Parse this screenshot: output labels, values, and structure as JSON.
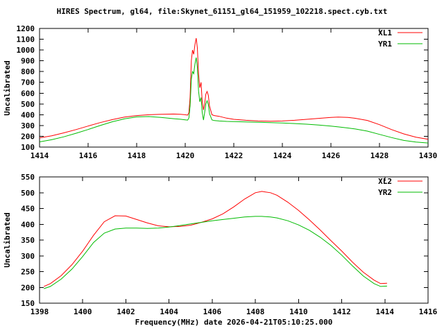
{
  "title": "HIRES Spectrum, gl64, file:Skynet_61151_gl64_151959_102218.spect.cyb.txt",
  "colors": {
    "background": "#ffffff",
    "axis": "#000000",
    "series_red": "#ff0000",
    "series_green": "#00bb00"
  },
  "chart_data": [
    {
      "type": "line",
      "ylabel": "Uncalibrated",
      "xlabel": "",
      "xlim": [
        1414,
        1430
      ],
      "ylim": [
        100,
        1200
      ],
      "xtick_step": 2,
      "ytick_step": 100,
      "grid": false,
      "legend_position": "top-right-inside",
      "series": [
        {
          "name": "XL1",
          "color": "#ff0000",
          "x": [
            1414,
            1414.5,
            1415,
            1415.5,
            1416,
            1416.5,
            1417,
            1417.5,
            1418,
            1418.5,
            1419,
            1419.5,
            1419.8,
            1420.0,
            1420.1,
            1420.15,
            1420.2,
            1420.25,
            1420.3,
            1420.35,
            1420.4,
            1420.45,
            1420.5,
            1420.55,
            1420.6,
            1420.65,
            1420.7,
            1420.75,
            1420.8,
            1420.85,
            1420.9,
            1420.95,
            1421.0,
            1421.1,
            1421.2,
            1421.4,
            1421.7,
            1422,
            1422.5,
            1423,
            1423.5,
            1424,
            1424.5,
            1425,
            1425.5,
            1426,
            1426.3,
            1426.7,
            1427,
            1427.5,
            1428,
            1428.5,
            1429,
            1429.5,
            1430
          ],
          "y": [
            185,
            205,
            232,
            262,
            295,
            327,
            355,
            378,
            392,
            400,
            404,
            406,
            404,
            400,
            396,
            420,
            560,
            900,
            1000,
            960,
            1050,
            1110,
            1020,
            780,
            650,
            700,
            520,
            445,
            500,
            590,
            615,
            580,
            480,
            400,
            392,
            385,
            368,
            357,
            348,
            342,
            340,
            342,
            348,
            357,
            366,
            375,
            378,
            375,
            367,
            347,
            308,
            262,
            222,
            192,
            172
          ]
        },
        {
          "name": "YR1",
          "color": "#00bb00",
          "x": [
            1414,
            1414.5,
            1415,
            1415.5,
            1416,
            1416.5,
            1417,
            1417.5,
            1418,
            1418.5,
            1419,
            1419.5,
            1419.8,
            1420.0,
            1420.1,
            1420.15,
            1420.2,
            1420.25,
            1420.3,
            1420.35,
            1420.4,
            1420.45,
            1420.5,
            1420.55,
            1420.6,
            1420.65,
            1420.7,
            1420.75,
            1420.8,
            1420.85,
            1420.9,
            1420.95,
            1421.0,
            1421.1,
            1421.2,
            1421.4,
            1421.7,
            1422,
            1422.5,
            1423,
            1423.5,
            1424,
            1424.5,
            1425,
            1425.5,
            1426,
            1426.3,
            1426.7,
            1427,
            1427.5,
            1428,
            1428.5,
            1429,
            1429.5,
            1430
          ],
          "y": [
            148,
            168,
            195,
            228,
            263,
            300,
            335,
            362,
            380,
            383,
            375,
            364,
            358,
            353,
            350,
            370,
            480,
            730,
            800,
            780,
            870,
            930,
            840,
            620,
            520,
            560,
            420,
            350,
            420,
            500,
            530,
            495,
            410,
            352,
            346,
            342,
            338,
            336,
            333,
            330,
            327,
            323,
            318,
            312,
            304,
            294,
            287,
            277,
            268,
            248,
            218,
            188,
            162,
            146,
            138
          ]
        }
      ]
    },
    {
      "type": "line",
      "ylabel": "Uncalibrated",
      "xlabel": "Frequency(MHz) date 2026-04-21T05:10:25.000",
      "xlim": [
        1398,
        1416
      ],
      "ylim": [
        150,
        550
      ],
      "xtick_step": 2,
      "ytick_step": 50,
      "grid": false,
      "legend_position": "top-right-inside",
      "series": [
        {
          "name": "XL2",
          "color": "#ff0000",
          "x": [
            1398.2,
            1398.5,
            1399,
            1399.5,
            1400,
            1400.5,
            1401,
            1401.5,
            1402,
            1402.5,
            1403,
            1403.5,
            1404,
            1404.5,
            1405,
            1405.5,
            1406,
            1406.5,
            1407,
            1407.5,
            1408,
            1408.3,
            1408.7,
            1409,
            1409.5,
            1410,
            1410.5,
            1411,
            1411.5,
            1412,
            1412.5,
            1413,
            1413.5,
            1413.8,
            1414.1
          ],
          "y": [
            203,
            212,
            237,
            272,
            315,
            365,
            408,
            427,
            426,
            415,
            404,
            395,
            392,
            393,
            397,
            406,
            417,
            433,
            455,
            480,
            500,
            504,
            500,
            492,
            470,
            444,
            414,
            382,
            348,
            315,
            280,
            248,
            223,
            212,
            213
          ]
        },
        {
          "name": "YR2",
          "color": "#00bb00",
          "x": [
            1398.2,
            1398.5,
            1399,
            1399.5,
            1400,
            1400.5,
            1401,
            1401.5,
            1402,
            1402.5,
            1403,
            1403.5,
            1404,
            1404.5,
            1405,
            1405.5,
            1406,
            1406.5,
            1407,
            1407.5,
            1408,
            1408.3,
            1408.7,
            1409,
            1409.5,
            1410,
            1410.5,
            1411,
            1411.5,
            1412,
            1412.5,
            1413,
            1413.5,
            1413.8,
            1414.1
          ],
          "y": [
            196,
            203,
            226,
            258,
            298,
            342,
            372,
            385,
            388,
            388,
            387,
            388,
            391,
            396,
            401,
            406,
            411,
            415,
            419,
            423,
            425,
            425,
            423,
            420,
            411,
            398,
            381,
            359,
            333,
            302,
            268,
            236,
            212,
            203,
            204
          ]
        }
      ]
    }
  ]
}
